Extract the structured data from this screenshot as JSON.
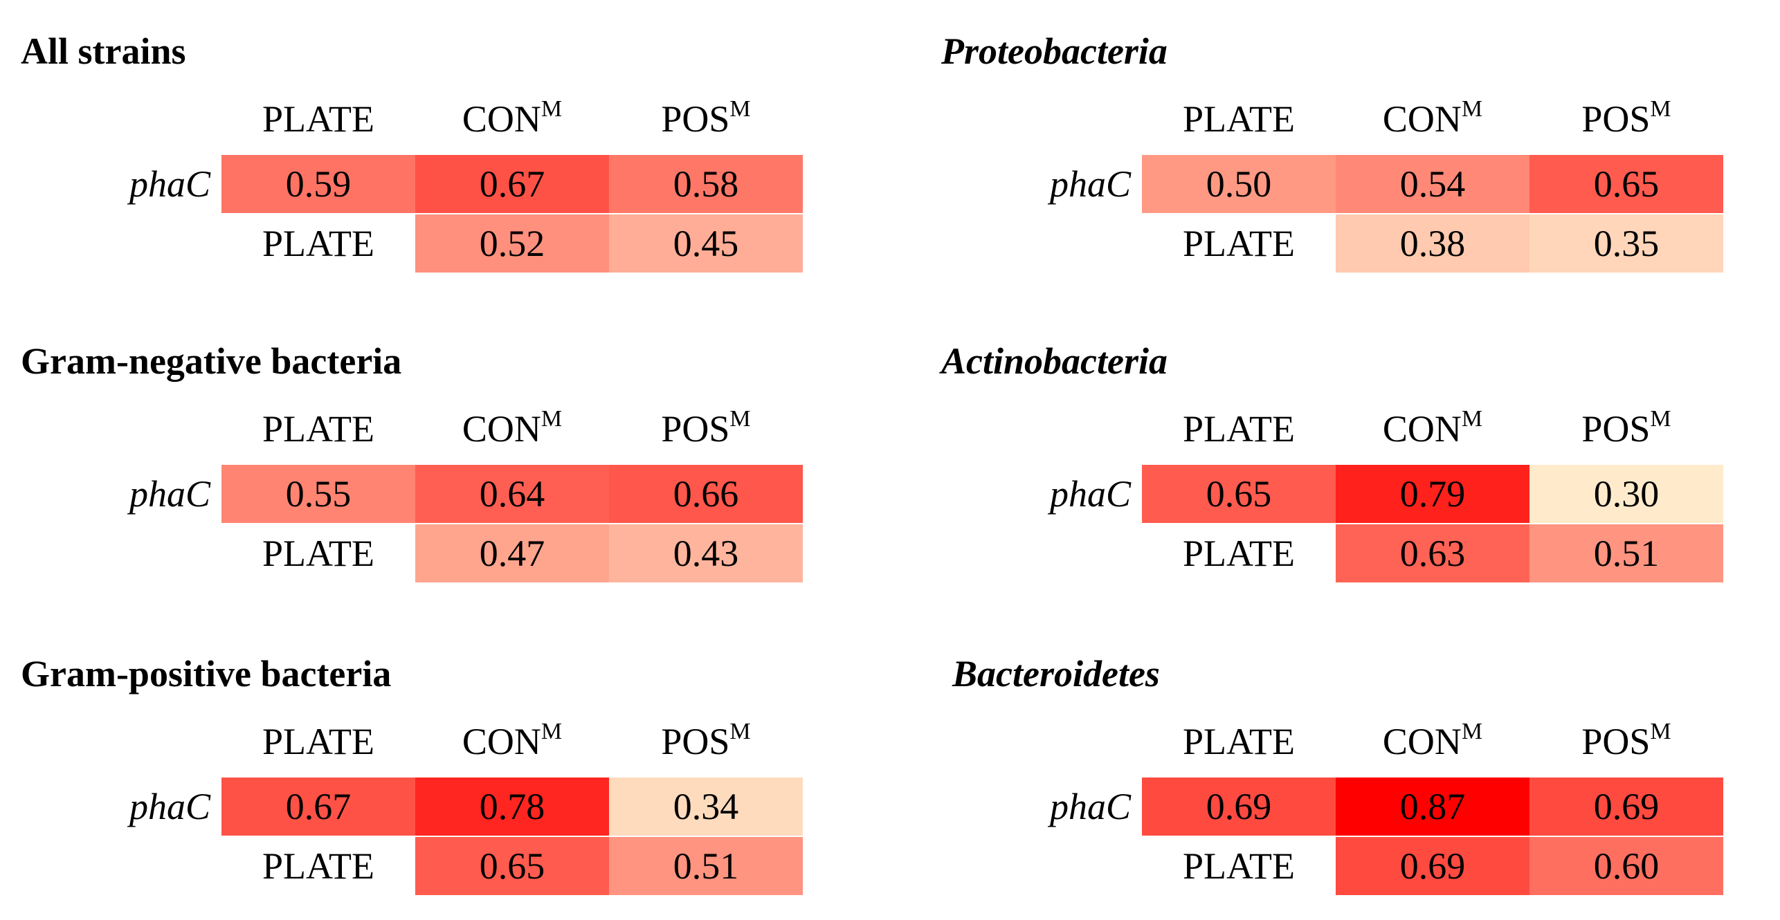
{
  "chart_data": [
    {
      "type": "heatmap",
      "title": "All strains",
      "title_italic": false,
      "columns": [
        {
          "name": "PLATE",
          "sup": ""
        },
        {
          "name": "CON",
          "sup": "M"
        },
        {
          "name": "POS",
          "sup": "M"
        }
      ],
      "rows": [
        {
          "label": "phaC",
          "values": [
            0.59,
            0.67,
            0.58
          ]
        },
        {
          "label": "PLATE",
          "values": [
            null,
            0.52,
            0.45
          ]
        }
      ]
    },
    {
      "type": "heatmap",
      "title": "Proteobacteria",
      "title_italic": true,
      "columns": [
        {
          "name": "PLATE",
          "sup": ""
        },
        {
          "name": "CON",
          "sup": "M"
        },
        {
          "name": "POS",
          "sup": "M"
        }
      ],
      "rows": [
        {
          "label": "phaC",
          "values": [
            0.5,
            0.54,
            0.65
          ]
        },
        {
          "label": "PLATE",
          "values": [
            null,
            0.38,
            0.35
          ]
        }
      ]
    },
    {
      "type": "heatmap",
      "title": "Gram-negative bacteria",
      "title_italic": false,
      "columns": [
        {
          "name": "PLATE",
          "sup": ""
        },
        {
          "name": "CON",
          "sup": "M"
        },
        {
          "name": "POS",
          "sup": "M"
        }
      ],
      "rows": [
        {
          "label": "phaC",
          "values": [
            0.55,
            0.64,
            0.66
          ]
        },
        {
          "label": "PLATE",
          "values": [
            null,
            0.47,
            0.43
          ]
        }
      ]
    },
    {
      "type": "heatmap",
      "title": "Actinobacteria",
      "title_italic": true,
      "columns": [
        {
          "name": "PLATE",
          "sup": ""
        },
        {
          "name": "CON",
          "sup": "M"
        },
        {
          "name": "POS",
          "sup": "M"
        }
      ],
      "rows": [
        {
          "label": "phaC",
          "values": [
            0.65,
            0.79,
            0.3
          ]
        },
        {
          "label": "PLATE",
          "values": [
            null,
            0.63,
            0.51
          ]
        }
      ]
    },
    {
      "type": "heatmap",
      "title": "Gram-positive bacteria",
      "title_italic": false,
      "columns": [
        {
          "name": "PLATE",
          "sup": ""
        },
        {
          "name": "CON",
          "sup": "M"
        },
        {
          "name": "POS",
          "sup": "M"
        }
      ],
      "rows": [
        {
          "label": "phaC",
          "values": [
            0.67,
            0.78,
            0.34
          ]
        },
        {
          "label": "PLATE",
          "values": [
            null,
            0.65,
            0.51
          ]
        }
      ]
    },
    {
      "type": "heatmap",
      "title": "Bacteroidetes",
      "title_italic": true,
      "columns": [
        {
          "name": "PLATE",
          "sup": ""
        },
        {
          "name": "CON",
          "sup": "M"
        },
        {
          "name": "POS",
          "sup": "M"
        }
      ],
      "rows": [
        {
          "label": "phaC",
          "values": [
            0.69,
            0.87,
            0.69
          ]
        },
        {
          "label": "PLATE",
          "values": [
            null,
            0.69,
            0.6
          ]
        }
      ]
    }
  ],
  "color_scale": {
    "low_value": 0.3,
    "high_value": 0.87,
    "low_color": "#FFEBCB",
    "high_color": "#FF0000"
  }
}
